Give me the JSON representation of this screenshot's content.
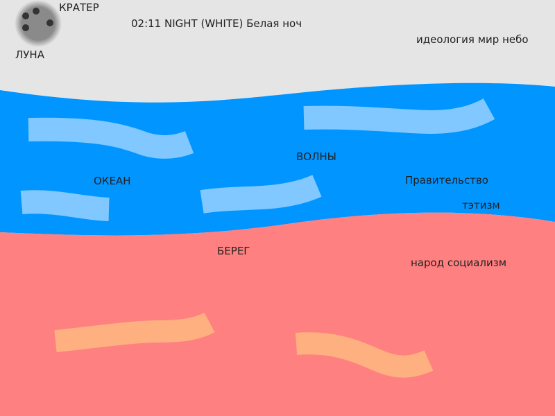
{
  "colors": {
    "sky": "#e5e5e5",
    "ocean": "#0095ff",
    "wave": "#80c8ff",
    "shore": "#ff8080",
    "sand_streak": "#ffb080",
    "moon": "#8a8a8a",
    "crater": "#333333"
  },
  "moon": {
    "label": "ЛУНА",
    "crater_label": "КРАТЕР"
  },
  "header": {
    "title": "02:11 NIGHT (WHITE) Белая ноч",
    "sky_caption": "идеология мир небо"
  },
  "ocean": {
    "label": "ОКЕАН",
    "waves_label": "ВОЛНЫ",
    "government_label": "Правительство",
    "etatism_label": "тэтизм"
  },
  "shore": {
    "label": "БЕРЕГ",
    "people_label": "народ социализм"
  }
}
